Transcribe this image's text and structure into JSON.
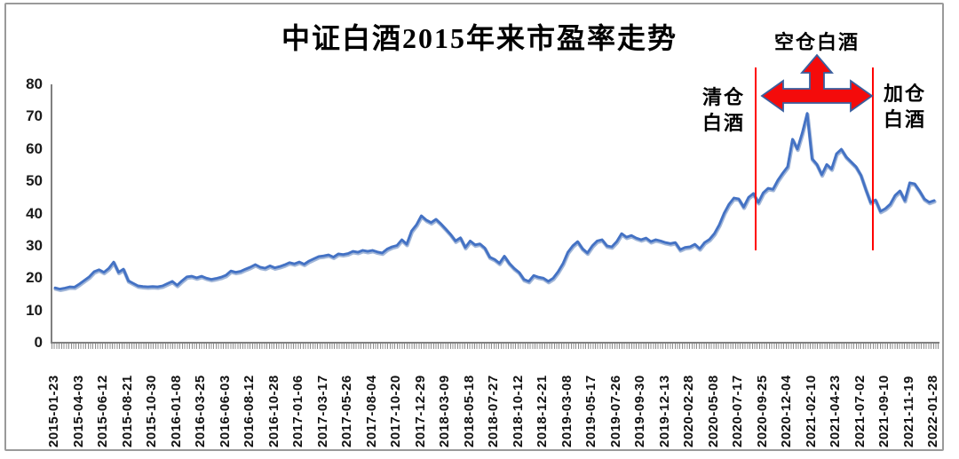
{
  "colors": {
    "line": "#4472c4",
    "line_shadow": "#2e5ea8",
    "axis": "#808080",
    "vline_red": "#ff0000",
    "arrow_fill": "#f40b0b",
    "arrow_outline": "#3a5f9e",
    "text": "#000000"
  },
  "chart_data": {
    "type": "line",
    "title": "中证白酒2015年来市盈率走势",
    "xlabel": "",
    "ylabel": "",
    "ylim": [
      0,
      80
    ],
    "y_tick_step": 10,
    "y_tick_labels": [
      "0",
      "10",
      "20",
      "30",
      "40",
      "50",
      "60",
      "70",
      "80"
    ],
    "grid": false,
    "legend": "none",
    "x_tick_labels": [
      "2015-01-23",
      "2015-04-03",
      "2015-06-12",
      "2015-08-21",
      "2015-10-30",
      "2016-01-08",
      "2016-03-25",
      "2016-06-03",
      "2016-08-12",
      "2016-10-28",
      "2017-01-06",
      "2017-03-17",
      "2017-05-26",
      "2017-08-04",
      "2017-10-20",
      "2017-12-29",
      "2018-03-09",
      "2018-05-18",
      "2018-07-27",
      "2018-10-12",
      "2018-12-21",
      "2019-03-08",
      "2019-05-17",
      "2019-07-26",
      "2019-09-30",
      "2019-12-13",
      "2020-02-28",
      "2020-05-08",
      "2020-07-17",
      "2020-09-25",
      "2020-12-04",
      "2021-02-10",
      "2021-04-23",
      "2021-07-02",
      "2021-09-10",
      "2021-11-19",
      "2022-01-28"
    ],
    "points_per_label_interval": 5,
    "series": [
      {
        "name": "市盈率",
        "values": [
          17.0,
          16.6,
          16.9,
          17.3,
          17.2,
          18.2,
          19.3,
          20.4,
          22.0,
          22.6,
          21.8,
          23.0,
          25.0,
          21.8,
          22.8,
          19.2,
          18.4,
          17.6,
          17.4,
          17.3,
          17.4,
          17.3,
          17.6,
          18.3,
          19.0,
          17.8,
          19.2,
          20.4,
          20.6,
          20.1,
          20.6,
          20.0,
          19.6,
          19.9,
          20.3,
          20.9,
          22.2,
          21.8,
          22.1,
          22.8,
          23.4,
          24.2,
          23.4,
          23.1,
          23.8,
          23.2,
          23.6,
          24.1,
          24.8,
          24.4,
          25.0,
          24.3,
          25.3,
          26.0,
          26.7,
          26.9,
          27.2,
          26.5,
          27.5,
          27.3,
          27.6,
          28.3,
          28.0,
          28.6,
          28.3,
          28.6,
          28.1,
          27.8,
          29.0,
          29.7,
          30.1,
          31.9,
          30.5,
          34.6,
          36.5,
          39.3,
          38.0,
          37.2,
          38.2,
          36.8,
          35.2,
          33.5,
          31.5,
          32.5,
          29.5,
          31.5,
          30.3,
          30.6,
          29.3,
          26.5,
          25.8,
          24.6,
          26.8,
          24.6,
          23.0,
          21.8,
          19.6,
          19.0,
          20.8,
          20.3,
          20.0,
          19.0,
          20.0,
          22.0,
          24.5,
          28.0,
          30.0,
          31.3,
          29.1,
          27.8,
          30.0,
          31.5,
          31.9,
          30.0,
          29.7,
          31.3,
          33.8,
          32.7,
          33.2,
          32.4,
          31.9,
          32.4,
          31.3,
          31.9,
          31.5,
          31.0,
          30.7,
          31.0,
          28.8,
          29.5,
          29.7,
          30.5,
          29.1,
          31.0,
          32.0,
          33.8,
          36.5,
          40.1,
          42.9,
          44.8,
          44.5,
          42.0,
          45.0,
          46.2,
          43.4,
          46.4,
          47.8,
          47.5,
          50.3,
          52.5,
          54.5,
          63.0,
          60.0,
          65.0,
          71.0,
          57.0,
          55.2,
          52.0,
          55.2,
          53.8,
          58.5,
          59.9,
          57.5,
          56.0,
          54.5,
          51.9,
          47.5,
          43.4,
          44.2,
          40.7,
          41.5,
          42.9,
          45.6,
          47.0,
          44.0,
          49.5,
          49.2,
          47.0,
          44.5,
          43.5,
          44.0
        ]
      }
    ],
    "annotations": {
      "vlines": [
        {
          "x_label_index": 28.7,
          "color": "#ff0000"
        },
        {
          "x_label_index": 33.5,
          "color": "#ff0000"
        }
      ],
      "labels": {
        "clear_position": {
          "line1": "清仓",
          "line2": "白酒"
        },
        "empty_position": {
          "text": "空仓白酒"
        },
        "add_position": {
          "line1": "加仓",
          "line2": "白酒"
        }
      },
      "arrow": {
        "shape": "three-way-arrow-left-right-up",
        "fill": "#f40b0b",
        "outline": "#3a5f9e"
      }
    }
  }
}
